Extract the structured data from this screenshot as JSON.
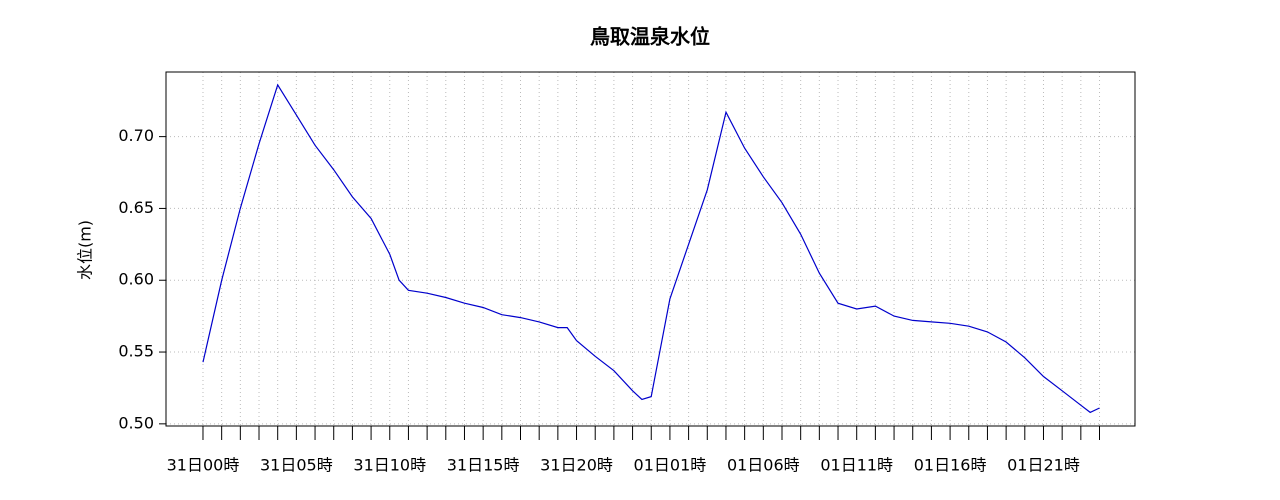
{
  "chart_data": {
    "type": "line",
    "title": "鳥取温泉水位",
    "ylabel": "水位(m)",
    "x": [
      0,
      1,
      2,
      3,
      4,
      5,
      6,
      7,
      8,
      9,
      10,
      10.5,
      11,
      12,
      13,
      14,
      15,
      16,
      17,
      18,
      19,
      19.5,
      20,
      21,
      22,
      23,
      23.5,
      24,
      25,
      26,
      27,
      28,
      29,
      30,
      31,
      32,
      33,
      34,
      35,
      36,
      37,
      38,
      39,
      40,
      41,
      42,
      43,
      44,
      45,
      46,
      47,
      47.5,
      48
    ],
    "values": [
      0.543,
      0.6,
      0.65,
      0.695,
      0.736,
      0.715,
      0.694,
      0.677,
      0.658,
      0.643,
      0.618,
      0.6,
      0.593,
      0.591,
      0.588,
      0.584,
      0.581,
      0.576,
      0.574,
      0.571,
      0.567,
      0.567,
      0.558,
      0.547,
      0.537,
      0.523,
      0.517,
      0.519,
      0.587,
      0.625,
      0.663,
      0.717,
      0.692,
      0.672,
      0.654,
      0.632,
      0.605,
      0.584,
      0.58,
      0.582,
      0.575,
      0.572,
      0.571,
      0.57,
      0.568,
      0.564,
      0.557,
      0.546,
      0.533,
      0.523,
      0.513,
      0.508,
      0.511
    ],
    "color": "#0000cc",
    "xlim": [
      -1.98,
      49.9
    ],
    "xticks": [
      {
        "value": 0,
        "label": "31日00時"
      },
      {
        "value": 5,
        "label": "31日05時"
      },
      {
        "value": 10,
        "label": "31日10時"
      },
      {
        "value": 15,
        "label": "31日15時"
      },
      {
        "value": 20,
        "label": "31日20時"
      },
      {
        "value": 25,
        "label": "01日01時"
      },
      {
        "value": 30,
        "label": "01日06時"
      },
      {
        "value": 35,
        "label": "01日11時"
      },
      {
        "value": 40,
        "label": "01日16時"
      },
      {
        "value": 45,
        "label": "01日21時"
      }
    ],
    "xticks_minor": [
      0,
      1,
      2,
      3,
      4,
      5,
      6,
      7,
      8,
      9,
      10,
      11,
      12,
      13,
      14,
      15,
      16,
      17,
      18,
      19,
      20,
      21,
      22,
      23,
      24,
      25,
      26,
      27,
      28,
      29,
      30,
      31,
      32,
      33,
      34,
      35,
      36,
      37,
      38,
      39,
      40,
      41,
      42,
      43,
      44,
      45,
      46,
      47,
      48
    ],
    "ylim": [
      0.4985,
      0.745
    ],
    "yticks": [
      {
        "value": 0.5,
        "label": "0.50"
      },
      {
        "value": 0.55,
        "label": "0.55"
      },
      {
        "value": 0.6,
        "label": "0.60"
      },
      {
        "value": 0.65,
        "label": "0.65"
      },
      {
        "value": 0.7,
        "label": "0.70"
      }
    ],
    "grid": true
  }
}
